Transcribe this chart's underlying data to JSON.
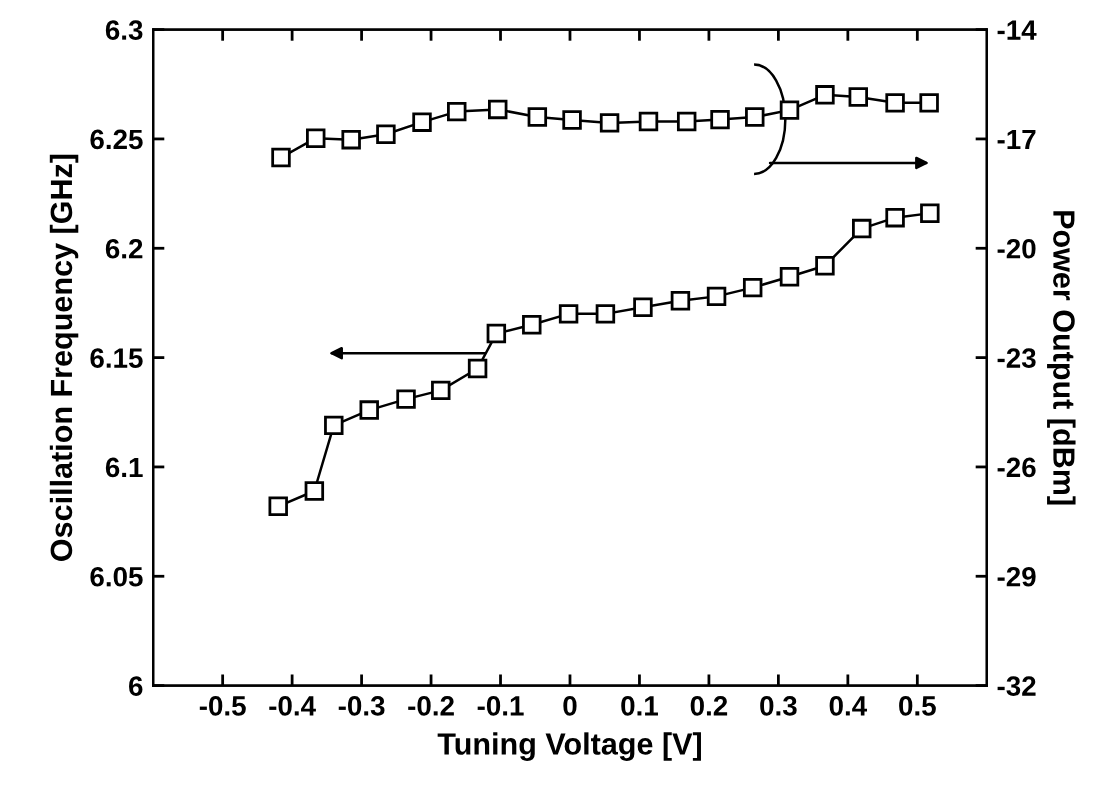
{
  "chart_data": {
    "type": "line",
    "xlabel": "Tuning Voltage [V]",
    "ylabel": "Oscillation Frequency [GHz]",
    "y2label": "Power Output [dBm]",
    "xlim": [
      -0.6,
      0.6
    ],
    "xticks": [
      -0.5,
      -0.4,
      -0.3,
      -0.2,
      -0.1,
      0,
      0.1,
      0.2,
      0.3,
      0.4,
      0.5
    ],
    "ylim": [
      6,
      6.3
    ],
    "yticks": [
      6,
      6.05,
      6.1,
      6.15,
      6.2,
      6.25,
      6.3
    ],
    "y2lim": [
      -32,
      -14
    ],
    "y2ticks": [
      -32,
      -29,
      -26,
      -23,
      -20,
      -17,
      -14
    ],
    "marker": "square",
    "line_style": "solid",
    "grid": false,
    "legend": false,
    "series": [
      {
        "color": "#000000",
        "x": [
          -0.42,
          -0.368,
          -0.34,
          -0.289,
          -0.236,
          -0.186,
          -0.133,
          -0.106,
          -0.055,
          -0.002,
          0.051,
          0.105,
          0.159,
          0.211,
          0.263,
          0.316,
          0.367,
          0.42,
          0.468,
          0.518
        ],
        "values": [
          6.082,
          6.089,
          6.119,
          6.126,
          6.131,
          6.135,
          6.145,
          6.161,
          6.165,
          6.17,
          6.17,
          6.173,
          6.176,
          6.178,
          6.182,
          6.187,
          6.192,
          6.209,
          6.214,
          6.216
        ]
      },
      {
        "color": "#000000",
        "axis": "y2",
        "x": [
          -0.416,
          -0.366,
          -0.315,
          -0.265,
          -0.213,
          -0.163,
          -0.104,
          -0.047,
          0.003,
          0.057,
          0.113,
          0.168,
          0.216,
          0.266,
          0.316,
          0.367,
          0.415,
          0.468,
          0.517
        ],
        "values": [
          -17.51,
          -16.98,
          -17.02,
          -16.87,
          -16.54,
          -16.25,
          -16.19,
          -16.4,
          -16.48,
          -16.56,
          -16.52,
          -16.52,
          -16.47,
          -16.4,
          -16.21,
          -15.79,
          -15.85,
          -16.01,
          -16.01
        ]
      }
    ]
  }
}
